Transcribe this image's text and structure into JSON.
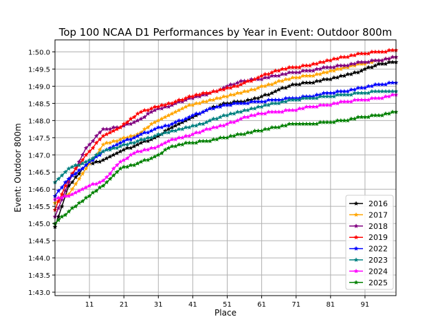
{
  "chart_data": {
    "type": "line",
    "title": "Top 100 NCAA D1 Performances by Year in Event: Outdoor 800m",
    "xlabel": "Place",
    "ylabel": "Event: Outdoor 800m",
    "xlim": [
      1,
      100
    ],
    "ylim": [
      102.9,
      110.35
    ],
    "x_ticks": [
      11,
      21,
      31,
      41,
      51,
      61,
      71,
      81,
      91
    ],
    "y_ticks": [
      103.0,
      103.5,
      104.0,
      104.5,
      105.0,
      105.5,
      106.0,
      106.5,
      107.0,
      107.5,
      108.0,
      108.5,
      109.0,
      109.5,
      110.0
    ],
    "y_tick_labels": [
      "1:43.0",
      "1:43.5",
      "1:44.0",
      "1:44.5",
      "1:45.0",
      "1:45.5",
      "1:46.0",
      "1:46.5",
      "1:47.0",
      "1:47.5",
      "1:48.0",
      "1:48.5",
      "1:49.0",
      "1:49.5",
      "1:50.0"
    ],
    "grid": true,
    "legend_position": "bottom-right",
    "marker": "star",
    "x": [
      1,
      5,
      10,
      15,
      20,
      25,
      30,
      35,
      40,
      45,
      50,
      55,
      60,
      65,
      70,
      75,
      80,
      85,
      90,
      95,
      100
    ],
    "series": [
      {
        "name": "2016",
        "color": "#000000",
        "values": [
          104.9,
          106.1,
          106.7,
          106.85,
          107.1,
          107.3,
          107.5,
          107.8,
          108.05,
          108.3,
          108.5,
          108.55,
          108.65,
          108.85,
          109.05,
          109.1,
          109.2,
          109.3,
          109.45,
          109.65,
          109.7
        ]
      },
      {
        "name": "2017",
        "color": "#ffa500",
        "values": [
          105.6,
          105.85,
          106.6,
          107.3,
          107.45,
          107.6,
          107.95,
          108.2,
          108.45,
          108.55,
          108.7,
          108.8,
          108.95,
          109.1,
          109.25,
          109.3,
          109.4,
          109.55,
          109.65,
          109.75,
          109.85
        ]
      },
      {
        "name": "2018",
        "color": "#800080",
        "values": [
          105.2,
          106.2,
          107.2,
          107.75,
          107.8,
          108.0,
          108.3,
          108.45,
          108.65,
          108.75,
          108.95,
          109.15,
          109.2,
          109.3,
          109.4,
          109.45,
          109.55,
          109.6,
          109.7,
          109.75,
          109.85
        ]
      },
      {
        "name": "2019",
        "color": "#ff0000",
        "values": [
          105.4,
          106.3,
          107.0,
          107.55,
          107.8,
          108.2,
          108.4,
          108.5,
          108.7,
          108.8,
          108.9,
          109.05,
          109.25,
          109.45,
          109.55,
          109.6,
          109.75,
          109.85,
          109.95,
          110.0,
          110.05
        ]
      },
      {
        "name": "2022",
        "color": "#0000ff",
        "values": [
          105.8,
          106.3,
          106.7,
          107.1,
          107.35,
          107.55,
          107.75,
          107.9,
          108.1,
          108.3,
          108.45,
          108.5,
          108.55,
          108.6,
          108.65,
          108.7,
          108.8,
          108.85,
          108.95,
          109.05,
          109.1
        ]
      },
      {
        "name": "2023",
        "color": "#008080",
        "values": [
          106.2,
          106.6,
          106.8,
          107.1,
          107.25,
          107.4,
          107.55,
          107.7,
          107.8,
          107.95,
          108.15,
          108.25,
          108.4,
          108.5,
          108.6,
          108.65,
          108.7,
          108.75,
          108.8,
          108.85,
          108.85
        ]
      },
      {
        "name": "2024",
        "color": "#ff00ff",
        "values": [
          105.7,
          105.8,
          106.05,
          106.25,
          106.8,
          107.1,
          107.2,
          107.45,
          107.55,
          107.75,
          107.85,
          108.05,
          108.2,
          108.25,
          108.3,
          108.4,
          108.45,
          108.55,
          108.6,
          108.65,
          108.75
        ]
      },
      {
        "name": "2025",
        "color": "#008000",
        "values": [
          105.0,
          105.35,
          105.75,
          106.1,
          106.6,
          106.75,
          106.95,
          107.25,
          107.35,
          107.4,
          107.5,
          107.6,
          107.7,
          107.8,
          107.9,
          107.9,
          107.95,
          108.0,
          108.1,
          108.15,
          108.25
        ]
      }
    ]
  }
}
